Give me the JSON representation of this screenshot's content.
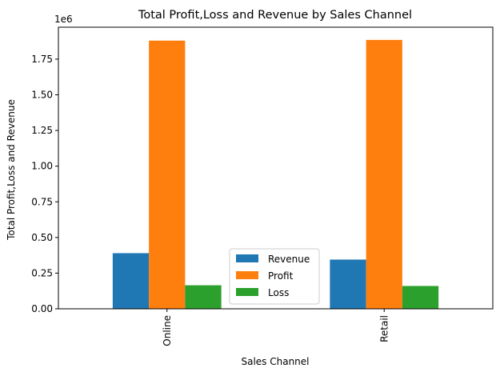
{
  "chart_data": {
    "type": "bar",
    "title": "Total Profit,Loss and Revenue by Sales Channel",
    "xlabel": "Sales Channel",
    "ylabel": "Total Profit,Loss and Revenue",
    "y_offset_label": "1e6",
    "categories": [
      "Online",
      "Retail"
    ],
    "series": [
      {
        "name": "Revenue",
        "color": "#1f77b4",
        "values": [
          0.39,
          0.345
        ]
      },
      {
        "name": "Profit",
        "color": "#ff7f0e",
        "values": [
          1.88,
          1.885
        ]
      },
      {
        "name": "Loss",
        "color": "#2ca02c",
        "values": [
          0.165,
          0.16
        ]
      }
    ],
    "ylim": [
      0,
      1.974
    ],
    "yticks": [
      0.0,
      0.25,
      0.5,
      0.75,
      1.0,
      1.25,
      1.5,
      1.75
    ],
    "ytick_labels": [
      "0.00",
      "0.25",
      "0.50",
      "0.75",
      "1.00",
      "1.25",
      "1.50",
      "1.75"
    ],
    "grid": false,
    "legend_position": "lower-center"
  }
}
